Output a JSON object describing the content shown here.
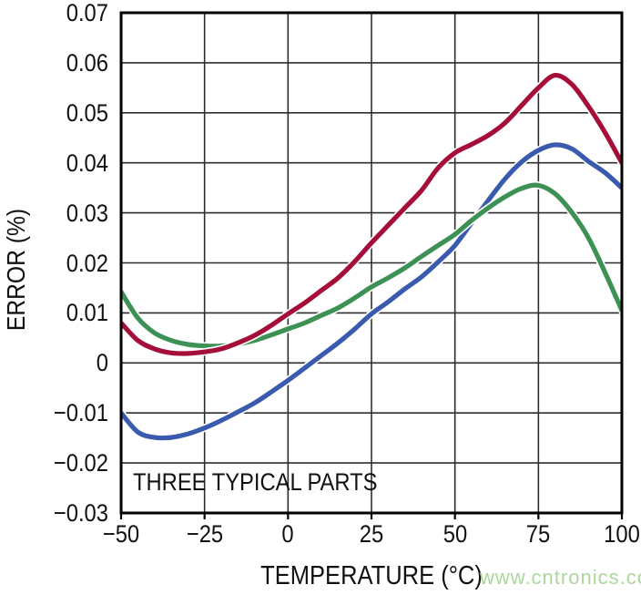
{
  "figure": {
    "background": "#ffffff",
    "text_color": "#111111",
    "watermark": {
      "text": "www.cntronics.com",
      "color": "#ABD89C"
    }
  },
  "chart_data": {
    "type": "line",
    "title": "",
    "xlabel": "TEMPERATURE (°C)",
    "ylabel": "ERROR (%)",
    "annotation": "THREE TYPICAL PARTS",
    "legend": "none",
    "grid": true,
    "xlim": [
      -50,
      100
    ],
    "ylim": [
      -0.03,
      0.07
    ],
    "x_ticks": [
      -50,
      -25,
      0,
      25,
      50,
      75,
      100
    ],
    "x_tick_labels": [
      "−50",
      "−25",
      "0",
      "25",
      "50",
      "75",
      "100"
    ],
    "y_ticks": [
      0.07,
      0.06,
      0.05,
      0.04,
      0.03,
      0.02,
      0.01,
      0,
      -0.01,
      -0.02,
      -0.03
    ],
    "y_tick_labels": [
      "0.07",
      "0.06",
      "0.05",
      "0.04",
      "0.03",
      "0.02",
      "0.01",
      "0",
      "−0.01",
      "−0.02",
      "−0.03"
    ],
    "axis_color": "#000000",
    "grid_color": "#2e2e2e",
    "series": [
      {
        "name": "typical-part-blue",
        "color": "#3A5BAD",
        "points": [
          [
            -50,
            -0.01
          ],
          [
            -45,
            -0.0138
          ],
          [
            -40,
            -0.0149
          ],
          [
            -35,
            -0.0149
          ],
          [
            -30,
            -0.0142
          ],
          [
            -25,
            -0.013
          ],
          [
            -20,
            -0.0115
          ],
          [
            -15,
            -0.0098
          ],
          [
            -10,
            -0.008
          ],
          [
            -5,
            -0.0058
          ],
          [
            0,
            -0.0035
          ],
          [
            5,
            -0.001
          ],
          [
            10,
            0.0015
          ],
          [
            15,
            0.004
          ],
          [
            20,
            0.0068
          ],
          [
            25,
            0.0098
          ],
          [
            30,
            0.0122
          ],
          [
            35,
            0.0148
          ],
          [
            40,
            0.0172
          ],
          [
            45,
            0.0202
          ],
          [
            50,
            0.0235
          ],
          [
            55,
            0.028
          ],
          [
            60,
            0.0325
          ],
          [
            65,
            0.0368
          ],
          [
            70,
            0.0402
          ],
          [
            75,
            0.0425
          ],
          [
            80,
            0.0436
          ],
          [
            85,
            0.0428
          ],
          [
            90,
            0.0403
          ],
          [
            95,
            0.038
          ],
          [
            100,
            0.035
          ]
        ]
      },
      {
        "name": "typical-part-green",
        "color": "#3E9155",
        "points": [
          [
            -50,
            0.0142
          ],
          [
            -45,
            0.009
          ],
          [
            -40,
            0.006
          ],
          [
            -35,
            0.0045
          ],
          [
            -30,
            0.0037
          ],
          [
            -25,
            0.0034
          ],
          [
            -20,
            0.0034
          ],
          [
            -15,
            0.0038
          ],
          [
            -10,
            0.0045
          ],
          [
            -5,
            0.0056
          ],
          [
            0,
            0.0068
          ],
          [
            5,
            0.008
          ],
          [
            10,
            0.0095
          ],
          [
            15,
            0.011
          ],
          [
            20,
            0.013
          ],
          [
            25,
            0.0152
          ],
          [
            30,
            0.017
          ],
          [
            35,
            0.019
          ],
          [
            40,
            0.0213
          ],
          [
            45,
            0.0235
          ],
          [
            50,
            0.0257
          ],
          [
            55,
            0.0285
          ],
          [
            60,
            0.031
          ],
          [
            65,
            0.0332
          ],
          [
            70,
            0.0349
          ],
          [
            75,
            0.0355
          ],
          [
            80,
            0.0338
          ],
          [
            85,
            0.0301
          ],
          [
            90,
            0.025
          ],
          [
            95,
            0.018
          ],
          [
            100,
            0.0105
          ]
        ]
      },
      {
        "name": "typical-part-red",
        "color": "#A50E38",
        "points": [
          [
            -50,
            0.008
          ],
          [
            -45,
            0.0045
          ],
          [
            -40,
            0.0028
          ],
          [
            -35,
            0.002
          ],
          [
            -30,
            0.0019
          ],
          [
            -25,
            0.0022
          ],
          [
            -20,
            0.0028
          ],
          [
            -15,
            0.004
          ],
          [
            -10,
            0.0055
          ],
          [
            -5,
            0.0075
          ],
          [
            0,
            0.0098
          ],
          [
            5,
            0.012
          ],
          [
            10,
            0.0145
          ],
          [
            15,
            0.017
          ],
          [
            20,
            0.0203
          ],
          [
            25,
            0.024
          ],
          [
            30,
            0.0275
          ],
          [
            35,
            0.031
          ],
          [
            40,
            0.0345
          ],
          [
            45,
            0.039
          ],
          [
            50,
            0.042
          ],
          [
            55,
            0.0437
          ],
          [
            60,
            0.0455
          ],
          [
            65,
            0.048
          ],
          [
            70,
            0.0515
          ],
          [
            75,
            0.055
          ],
          [
            80,
            0.0575
          ],
          [
            85,
            0.0557
          ],
          [
            90,
            0.0513
          ],
          [
            95,
            0.046
          ],
          [
            100,
            0.04
          ]
        ]
      }
    ]
  }
}
